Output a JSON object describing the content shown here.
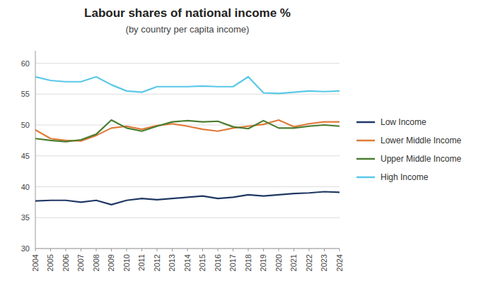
{
  "chart_data": {
    "type": "line",
    "title": "Labour shares of national income %",
    "subtitle": "(by country per capita income)",
    "x": [
      2004,
      2005,
      2006,
      2007,
      2008,
      2009,
      2010,
      2011,
      2012,
      2013,
      2014,
      2015,
      2016,
      2017,
      2018,
      2019,
      2020,
      2021,
      2022,
      2023,
      2024
    ],
    "xlim": [
      2004,
      2024
    ],
    "xticks": [
      2004,
      2005,
      2006,
      2007,
      2008,
      2009,
      2010,
      2011,
      2012,
      2013,
      2014,
      2015,
      2016,
      2017,
      2018,
      2019,
      2020,
      2021,
      2022,
      2023,
      2024
    ],
    "ylim": [
      30,
      62
    ],
    "yticks": [
      30,
      35,
      40,
      45,
      50,
      55,
      60
    ],
    "grid": true,
    "legend": "right",
    "series": [
      {
        "name": "Low Income",
        "color": "#1f3864",
        "values": [
          37.7,
          37.8,
          37.8,
          37.5,
          37.8,
          37.1,
          37.8,
          38.1,
          37.9,
          38.1,
          38.3,
          38.5,
          38.1,
          38.3,
          38.7,
          38.5,
          38.7,
          38.9,
          39.0,
          39.2,
          39.1
        ]
      },
      {
        "name": "Lower Middle Income",
        "color": "#e07b39",
        "values": [
          49.2,
          47.8,
          47.5,
          47.4,
          48.3,
          49.5,
          49.8,
          49.3,
          49.9,
          50.2,
          49.8,
          49.3,
          49.0,
          49.5,
          49.8,
          50.1,
          50.8,
          49.7,
          50.2,
          50.5,
          50.5
        ]
      },
      {
        "name": "Upper Middle Income",
        "color": "#4a7c2f",
        "values": [
          47.8,
          47.5,
          47.3,
          47.6,
          48.5,
          50.8,
          49.5,
          49.0,
          49.8,
          50.5,
          50.7,
          50.5,
          50.6,
          49.7,
          49.4,
          50.7,
          49.5,
          49.5,
          49.8,
          50.0,
          49.8
        ]
      },
      {
        "name": "High Income",
        "color": "#5bc8e8",
        "values": [
          57.8,
          57.2,
          57.0,
          57.0,
          57.8,
          56.5,
          55.5,
          55.3,
          56.2,
          56.2,
          56.2,
          56.3,
          56.2,
          56.2,
          57.8,
          55.2,
          55.1,
          55.3,
          55.5,
          55.4,
          55.5
        ]
      }
    ]
  }
}
